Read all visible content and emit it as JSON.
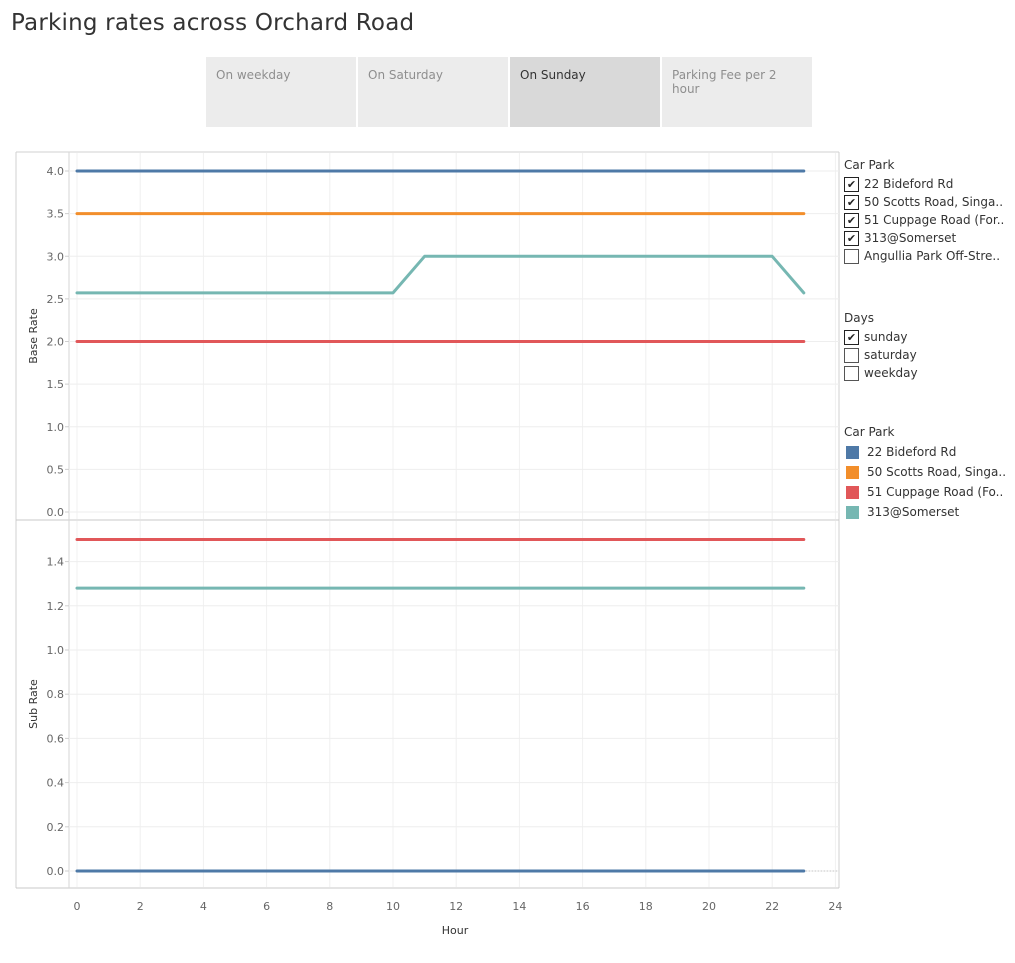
{
  "page": {
    "title": "Parking rates across Orchard Road"
  },
  "tabs": [
    {
      "label": "On weekday",
      "active": false
    },
    {
      "label": "On Saturday",
      "active": false
    },
    {
      "label": "On Sunday",
      "active": true
    },
    {
      "label": "Parking Fee per 2 hour",
      "active": false
    }
  ],
  "filters": {
    "car_park": {
      "title": "Car Park",
      "items": [
        {
          "label": "22 Bideford Rd",
          "checked": true
        },
        {
          "label": "50 Scotts Road, Singa..",
          "checked": true
        },
        {
          "label": "51 Cuppage Road (For..",
          "checked": true
        },
        {
          "label": "313@Somerset",
          "checked": true
        },
        {
          "label": "Angullia Park Off-Stre..",
          "checked": false
        }
      ]
    },
    "days": {
      "title": "Days",
      "items": [
        {
          "label": "sunday",
          "checked": true
        },
        {
          "label": "saturday",
          "checked": false
        },
        {
          "label": "weekday",
          "checked": false
        }
      ]
    }
  },
  "color_legend": {
    "title": "Car Park",
    "items": [
      {
        "label": "22 Bideford Rd",
        "color": "#4e79a7"
      },
      {
        "label": "50 Scotts Road, Singa..",
        "color": "#f28e2b"
      },
      {
        "label": "51 Cuppage Road (Fo..",
        "color": "#e15759"
      },
      {
        "label": "313@Somerset",
        "color": "#76b7b2"
      }
    ]
  },
  "chart_data": [
    {
      "type": "line",
      "ylabel": "Base Rate",
      "ylim": [
        0,
        4.2
      ],
      "yticks": [
        "0.0",
        "0.5",
        "1.0",
        "1.5",
        "2.0",
        "2.5",
        "3.0",
        "3.5",
        "4.0"
      ],
      "x": [
        0,
        1,
        2,
        3,
        4,
        5,
        6,
        7,
        8,
        9,
        10,
        11,
        12,
        13,
        14,
        15,
        16,
        17,
        18,
        19,
        20,
        21,
        22,
        23
      ],
      "series": [
        {
          "name": "22 Bideford Rd",
          "color": "#4e79a7",
          "values": [
            4,
            4,
            4,
            4,
            4,
            4,
            4,
            4,
            4,
            4,
            4,
            4,
            4,
            4,
            4,
            4,
            4,
            4,
            4,
            4,
            4,
            4,
            4,
            4
          ]
        },
        {
          "name": "50 Scotts Road, Singa..",
          "color": "#f28e2b",
          "values": [
            3.5,
            3.5,
            3.5,
            3.5,
            3.5,
            3.5,
            3.5,
            3.5,
            3.5,
            3.5,
            3.5,
            3.5,
            3.5,
            3.5,
            3.5,
            3.5,
            3.5,
            3.5,
            3.5,
            3.5,
            3.5,
            3.5,
            3.5,
            3.5
          ]
        },
        {
          "name": "51 Cuppage Road (Fo..",
          "color": "#e15759",
          "values": [
            2,
            2,
            2,
            2,
            2,
            2,
            2,
            2,
            2,
            2,
            2,
            2,
            2,
            2,
            2,
            2,
            2,
            2,
            2,
            2,
            2,
            2,
            2,
            2
          ]
        },
        {
          "name": "313@Somerset",
          "color": "#76b7b2",
          "values": [
            2.57,
            2.57,
            2.57,
            2.57,
            2.57,
            2.57,
            2.57,
            2.57,
            2.57,
            2.57,
            2.57,
            3,
            3,
            3,
            3,
            3,
            3,
            3,
            3,
            3,
            3,
            3,
            3,
            2.57
          ]
        }
      ]
    },
    {
      "type": "line",
      "ylabel": "Sub Rate",
      "xlabel": "Hour",
      "ylim": [
        0,
        1.5
      ],
      "yticks": [
        "0.0",
        "0.2",
        "0.4",
        "0.6",
        "0.8",
        "1.0",
        "1.2",
        "1.4"
      ],
      "xticks": [
        "0",
        "2",
        "4",
        "6",
        "8",
        "10",
        "12",
        "14",
        "16",
        "18",
        "20",
        "22",
        "24"
      ],
      "x": [
        0,
        1,
        2,
        3,
        4,
        5,
        6,
        7,
        8,
        9,
        10,
        11,
        12,
        13,
        14,
        15,
        16,
        17,
        18,
        19,
        20,
        21,
        22,
        23
      ],
      "series": [
        {
          "name": "22 Bideford Rd",
          "color": "#4e79a7",
          "values": [
            0,
            0,
            0,
            0,
            0,
            0,
            0,
            0,
            0,
            0,
            0,
            0,
            0,
            0,
            0,
            0,
            0,
            0,
            0,
            0,
            0,
            0,
            0,
            0
          ]
        },
        {
          "name": "51 Cuppage Road (Fo..",
          "color": "#e15759",
          "values": [
            1.5,
            1.5,
            1.5,
            1.5,
            1.5,
            1.5,
            1.5,
            1.5,
            1.5,
            1.5,
            1.5,
            1.5,
            1.5,
            1.5,
            1.5,
            1.5,
            1.5,
            1.5,
            1.5,
            1.5,
            1.5,
            1.5,
            1.5,
            1.5
          ]
        },
        {
          "name": "313@Somerset",
          "color": "#76b7b2",
          "values": [
            1.28,
            1.28,
            1.28,
            1.28,
            1.28,
            1.28,
            1.28,
            1.28,
            1.28,
            1.28,
            1.28,
            1.28,
            1.28,
            1.28,
            1.28,
            1.28,
            1.28,
            1.28,
            1.28,
            1.28,
            1.28,
            1.28,
            1.28,
            1.28
          ]
        }
      ]
    }
  ]
}
